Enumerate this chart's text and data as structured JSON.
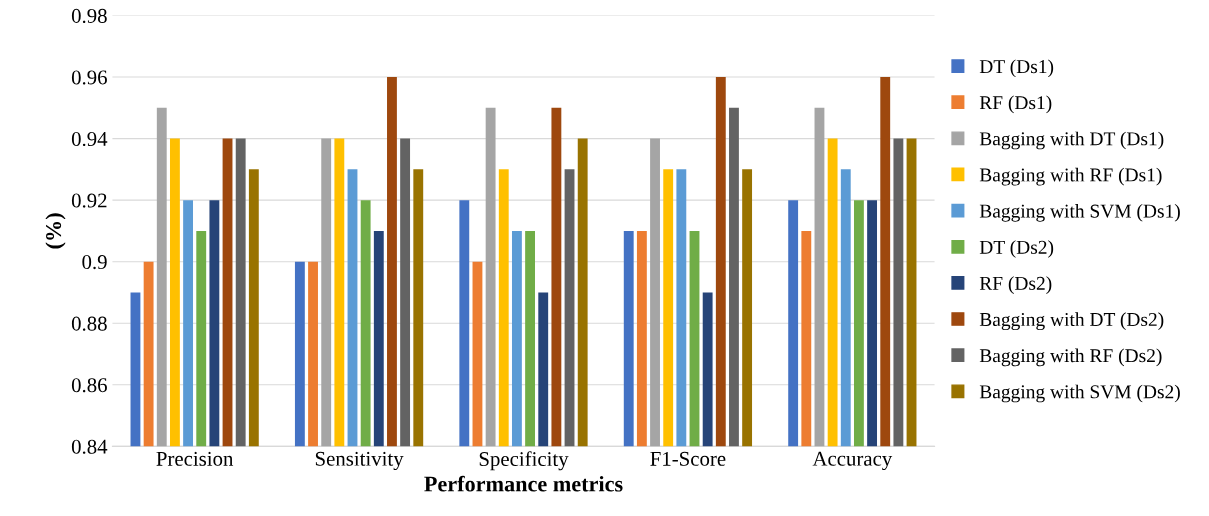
{
  "chart_data": {
    "type": "bar",
    "xlabel": "Performance metrics",
    "ylabel": "(%)",
    "categories": [
      "Precision",
      "Sensitivity",
      "Specificity",
      "F1-Score",
      "Accuracy"
    ],
    "series": [
      {
        "name": "DT (Ds1)",
        "color": "#4472c4",
        "values": [
          0.89,
          0.9,
          0.92,
          0.91,
          0.92
        ]
      },
      {
        "name": "RF (Ds1)",
        "color": "#ed7d31",
        "values": [
          0.9,
          0.9,
          0.9,
          0.91,
          0.91
        ]
      },
      {
        "name": "Bagging with DT (Ds1)",
        "color": "#a5a5a5",
        "values": [
          0.95,
          0.94,
          0.95,
          0.94,
          0.95
        ]
      },
      {
        "name": "Bagging with RF (Ds1)",
        "color": "#ffc000",
        "values": [
          0.94,
          0.94,
          0.93,
          0.93,
          0.94
        ]
      },
      {
        "name": "Bagging with SVM (Ds1)",
        "color": "#5b9bd5",
        "values": [
          0.92,
          0.93,
          0.91,
          0.93,
          0.93
        ]
      },
      {
        "name": "DT (Ds2)",
        "color": "#70ad47",
        "values": [
          0.91,
          0.92,
          0.91,
          0.91,
          0.92
        ]
      },
      {
        "name": "RF (Ds2)",
        "color": "#264478",
        "values": [
          0.92,
          0.91,
          0.89,
          0.89,
          0.92
        ]
      },
      {
        "name": "Bagging with DT (Ds2)",
        "color": "#9e480e",
        "values": [
          0.94,
          0.96,
          0.95,
          0.96,
          0.96
        ]
      },
      {
        "name": "Bagging with RF (Ds2)",
        "color": "#636363",
        "values": [
          0.94,
          0.94,
          0.93,
          0.95,
          0.94
        ]
      },
      {
        "name": "Bagging with SVM (Ds2)",
        "color": "#997300",
        "values": [
          0.93,
          0.93,
          0.94,
          0.93,
          0.94
        ]
      }
    ],
    "ylim": [
      0.84,
      0.98
    ],
    "yticks": [
      0.84,
      0.86,
      0.88,
      0.9,
      0.92,
      0.94,
      0.96,
      0.98
    ],
    "grid": "y",
    "legend": "right"
  }
}
